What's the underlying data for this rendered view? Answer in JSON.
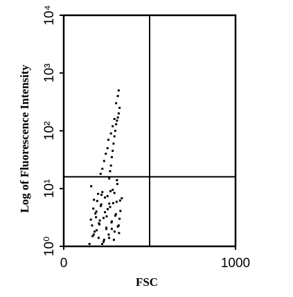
{
  "chart_data": {
    "type": "scatter",
    "xlabel": "FSC",
    "ylabel": "Log of Fluorescence Intensity",
    "xlim": [
      0,
      1000
    ],
    "xticks": [
      0,
      1000
    ],
    "ylim": [
      1,
      10000
    ],
    "log_y": true,
    "yticks": [
      {
        "value": 1,
        "label": "10⁰"
      },
      {
        "value": 10,
        "label": "10¹"
      },
      {
        "value": 100,
        "label": "10²"
      },
      {
        "value": 1000,
        "label": "10³"
      },
      {
        "value": 10000,
        "label": "10⁴"
      }
    ],
    "gates": {
      "x": 500,
      "y": 16
    },
    "color": "#000000",
    "x": [
      150,
      165,
      172,
      180,
      188,
      195,
      203,
      210,
      218,
      225,
      232,
      240,
      248,
      255,
      262,
      270,
      278,
      285,
      292,
      300,
      308,
      315,
      322,
      330,
      338,
      158,
      168,
      176,
      184,
      192,
      200,
      208,
      216,
      224,
      232,
      240,
      248,
      256,
      264,
      272,
      280,
      288,
      296,
      304,
      312,
      320,
      328,
      160,
      175,
      190,
      205,
      220,
      235,
      250,
      265,
      280,
      295,
      310,
      325,
      265,
      270,
      275,
      280,
      285,
      290,
      295,
      300,
      305,
      310,
      315,
      320,
      325,
      215,
      225,
      235,
      245,
      255,
      260,
      275,
      285,
      295,
      305,
      315,
      320
    ],
    "y": [
      1.1,
      2.3,
      4.5,
      1.8,
      3.2,
      6.1,
      1.4,
      2.8,
      5.3,
      8.7,
      1.2,
      3.9,
      2.1,
      7.4,
      1.6,
      4.8,
      2.6,
      9.5,
      1.3,
      3.4,
      5.9,
      2.2,
      1.7,
      4.1,
      6.8,
      2.9,
      1.5,
      6.4,
      3.7,
      1.9,
      8.1,
      2.4,
      5.0,
      1.1,
      3.1,
      7.0,
      2.0,
      4.4,
      1.4,
      9.0,
      2.7,
      5.6,
      1.8,
      3.6,
      12,
      2.3,
      6.2,
      11,
      1.6,
      4.0,
      2.5,
      7.8,
      1.3,
      3.3,
      5.5,
      2.0,
      8.4,
      14,
      3.0,
      15,
      20,
      25,
      35,
      45,
      60,
      80,
      100,
      130,
      150,
      170,
      200,
      250,
      18,
      22,
      30,
      40,
      50,
      70,
      90,
      120,
      160,
      300,
      400,
      500
    ]
  }
}
